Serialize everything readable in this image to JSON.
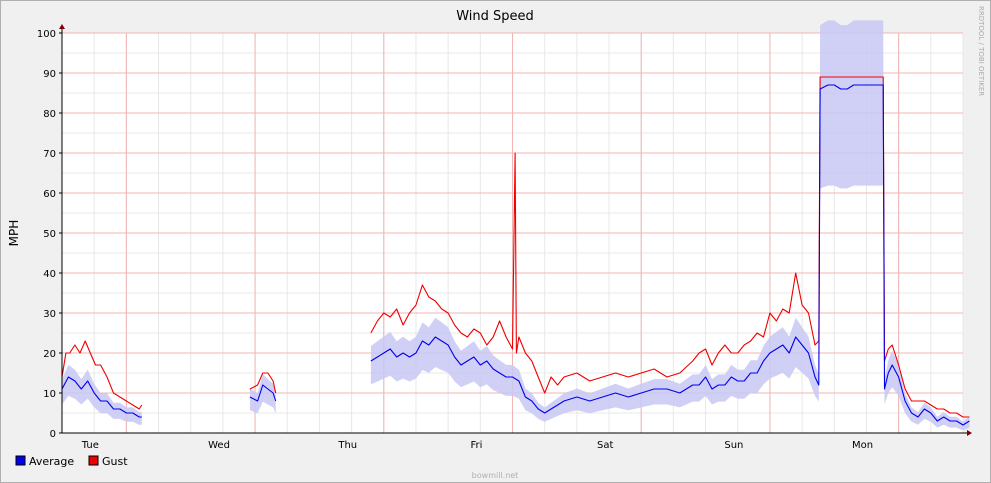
{
  "chart_data": {
    "type": "line",
    "title": "Wind Speed",
    "ylabel": "MPH",
    "xlabel": "",
    "ylim": [
      0,
      100
    ],
    "y_ticks": [
      0,
      10,
      20,
      30,
      40,
      50,
      60,
      70,
      80,
      90,
      100
    ],
    "x_range_days": [
      0,
      7
    ],
    "day_labels": [
      {
        "label": "Tue",
        "day": 0.22
      },
      {
        "label": "Wed",
        "day": 1.22
      },
      {
        "label": "Thu",
        "day": 2.22
      },
      {
        "label": "Fri",
        "day": 3.22
      },
      {
        "label": "Sat",
        "day": 4.22
      },
      {
        "label": "Sun",
        "day": 5.22
      },
      {
        "label": "Mon",
        "day": 6.22
      }
    ],
    "grid": true,
    "legend_position": "bottom-left",
    "watermark": "RRDTOOL / TOBI OETIKER",
    "footer": "bowmill.net",
    "series": [
      {
        "name": "Average",
        "color": "#0000ee",
        "band_color": "#c8c8f4",
        "points": [
          [
            0.0,
            11
          ],
          [
            0.05,
            14
          ],
          [
            0.1,
            13
          ],
          [
            0.15,
            11
          ],
          [
            0.2,
            13
          ],
          [
            0.25,
            10
          ],
          [
            0.3,
            8
          ],
          [
            0.35,
            8
          ],
          [
            0.4,
            6
          ],
          [
            0.45,
            6
          ],
          [
            0.5,
            5
          ],
          [
            0.55,
            5
          ],
          [
            0.6,
            4
          ],
          [
            0.62,
            4
          ],
          null,
          [
            1.46,
            9
          ],
          [
            1.52,
            8
          ],
          [
            1.56,
            12
          ],
          [
            1.6,
            11
          ],
          [
            1.64,
            10
          ],
          [
            1.66,
            8
          ],
          null,
          [
            2.4,
            18
          ],
          [
            2.45,
            19
          ],
          [
            2.5,
            20
          ],
          [
            2.55,
            21
          ],
          [
            2.6,
            19
          ],
          [
            2.65,
            20
          ],
          [
            2.7,
            19
          ],
          [
            2.75,
            20
          ],
          [
            2.8,
            23
          ],
          [
            2.85,
            22
          ],
          [
            2.9,
            24
          ],
          [
            2.95,
            23
          ],
          [
            3.0,
            22
          ],
          [
            3.05,
            19
          ],
          [
            3.1,
            17
          ],
          [
            3.15,
            18
          ],
          [
            3.2,
            19
          ],
          [
            3.25,
            17
          ],
          [
            3.3,
            18
          ],
          [
            3.35,
            16
          ],
          [
            3.4,
            15
          ],
          [
            3.45,
            14
          ],
          [
            3.5,
            14
          ],
          [
            3.55,
            13
          ],
          [
            3.6,
            9
          ],
          [
            3.65,
            8
          ],
          [
            3.7,
            6
          ],
          [
            3.75,
            5
          ],
          [
            3.8,
            6
          ],
          [
            3.85,
            7
          ],
          [
            3.9,
            8
          ],
          [
            4.0,
            9
          ],
          [
            4.1,
            8
          ],
          [
            4.2,
            9
          ],
          [
            4.3,
            10
          ],
          [
            4.4,
            9
          ],
          [
            4.5,
            10
          ],
          [
            4.6,
            11
          ],
          [
            4.7,
            11
          ],
          [
            4.8,
            10
          ],
          [
            4.9,
            12
          ],
          [
            4.95,
            12
          ],
          [
            5.0,
            14
          ],
          [
            5.05,
            11
          ],
          [
            5.1,
            12
          ],
          [
            5.15,
            12
          ],
          [
            5.2,
            14
          ],
          [
            5.25,
            13
          ],
          [
            5.3,
            13
          ],
          [
            5.35,
            15
          ],
          [
            5.4,
            15
          ],
          [
            5.45,
            18
          ],
          [
            5.5,
            20
          ],
          [
            5.55,
            21
          ],
          [
            5.6,
            22
          ],
          [
            5.65,
            20
          ],
          [
            5.7,
            24
          ],
          [
            5.75,
            22
          ],
          [
            5.8,
            20
          ],
          [
            5.85,
            14
          ],
          [
            5.88,
            12
          ],
          [
            5.89,
            86
          ],
          [
            5.95,
            87
          ],
          [
            6.0,
            87
          ],
          [
            6.05,
            86
          ],
          [
            6.1,
            86
          ],
          [
            6.15,
            87
          ],
          [
            6.2,
            87
          ],
          [
            6.25,
            87
          ],
          [
            6.3,
            87
          ],
          [
            6.35,
            87
          ],
          [
            6.38,
            87
          ],
          [
            6.39,
            11
          ],
          [
            6.42,
            15
          ],
          [
            6.45,
            17
          ],
          [
            6.5,
            14
          ],
          [
            6.55,
            8
          ],
          [
            6.6,
            5
          ],
          [
            6.65,
            4
          ],
          [
            6.7,
            6
          ],
          [
            6.75,
            5
          ],
          [
            6.8,
            3
          ],
          [
            6.85,
            4
          ],
          [
            6.9,
            3
          ],
          [
            6.95,
            3
          ],
          [
            7.0,
            2
          ],
          [
            7.05,
            3
          ]
        ]
      },
      {
        "name": "Gust",
        "color": "#ee0000",
        "points": [
          [
            0.0,
            14
          ],
          [
            0.03,
            20
          ],
          [
            0.06,
            20
          ],
          [
            0.1,
            22
          ],
          [
            0.14,
            20
          ],
          [
            0.18,
            23
          ],
          [
            0.22,
            20
          ],
          [
            0.26,
            17
          ],
          [
            0.3,
            17
          ],
          [
            0.35,
            14
          ],
          [
            0.4,
            10
          ],
          [
            0.45,
            9
          ],
          [
            0.5,
            8
          ],
          [
            0.55,
            7
          ],
          [
            0.6,
            6
          ],
          [
            0.62,
            7
          ],
          null,
          [
            1.46,
            11
          ],
          [
            1.52,
            12
          ],
          [
            1.56,
            15
          ],
          [
            1.6,
            15
          ],
          [
            1.64,
            13
          ],
          [
            1.66,
            10
          ],
          null,
          [
            2.4,
            25
          ],
          [
            2.45,
            28
          ],
          [
            2.5,
            30
          ],
          [
            2.55,
            29
          ],
          [
            2.6,
            31
          ],
          [
            2.65,
            27
          ],
          [
            2.7,
            30
          ],
          [
            2.75,
            32
          ],
          [
            2.8,
            37
          ],
          [
            2.85,
            34
          ],
          [
            2.9,
            33
          ],
          [
            2.95,
            31
          ],
          [
            3.0,
            30
          ],
          [
            3.05,
            27
          ],
          [
            3.1,
            25
          ],
          [
            3.15,
            24
          ],
          [
            3.2,
            26
          ],
          [
            3.25,
            25
          ],
          [
            3.3,
            22
          ],
          [
            3.35,
            24
          ],
          [
            3.4,
            28
          ],
          [
            3.45,
            24
          ],
          [
            3.5,
            21
          ],
          [
            3.52,
            70
          ],
          [
            3.53,
            20
          ],
          [
            3.55,
            24
          ],
          [
            3.6,
            20
          ],
          [
            3.65,
            18
          ],
          [
            3.7,
            14
          ],
          [
            3.75,
            10
          ],
          [
            3.8,
            14
          ],
          [
            3.85,
            12
          ],
          [
            3.9,
            14
          ],
          [
            4.0,
            15
          ],
          [
            4.1,
            13
          ],
          [
            4.2,
            14
          ],
          [
            4.3,
            15
          ],
          [
            4.4,
            14
          ],
          [
            4.5,
            15
          ],
          [
            4.6,
            16
          ],
          [
            4.7,
            14
          ],
          [
            4.8,
            15
          ],
          [
            4.9,
            18
          ],
          [
            4.95,
            20
          ],
          [
            5.0,
            21
          ],
          [
            5.05,
            17
          ],
          [
            5.1,
            20
          ],
          [
            5.15,
            22
          ],
          [
            5.2,
            20
          ],
          [
            5.25,
            20
          ],
          [
            5.3,
            22
          ],
          [
            5.35,
            23
          ],
          [
            5.4,
            25
          ],
          [
            5.45,
            24
          ],
          [
            5.5,
            30
          ],
          [
            5.55,
            28
          ],
          [
            5.6,
            31
          ],
          [
            5.65,
            30
          ],
          [
            5.7,
            40
          ],
          [
            5.75,
            32
          ],
          [
            5.8,
            30
          ],
          [
            5.85,
            22
          ],
          [
            5.88,
            23
          ],
          [
            5.89,
            89
          ],
          [
            5.95,
            89
          ],
          [
            6.0,
            89
          ],
          [
            6.05,
            89
          ],
          [
            6.1,
            89
          ],
          [
            6.15,
            89
          ],
          [
            6.2,
            89
          ],
          [
            6.25,
            89
          ],
          [
            6.3,
            89
          ],
          [
            6.35,
            89
          ],
          [
            6.38,
            89
          ],
          [
            6.39,
            18
          ],
          [
            6.42,
            21
          ],
          [
            6.45,
            22
          ],
          [
            6.5,
            17
          ],
          [
            6.55,
            11
          ],
          [
            6.6,
            8
          ],
          [
            6.65,
            8
          ],
          [
            6.7,
            8
          ],
          [
            6.75,
            7
          ],
          [
            6.8,
            6
          ],
          [
            6.85,
            6
          ],
          [
            6.9,
            5
          ],
          [
            6.95,
            5
          ],
          [
            7.0,
            4
          ],
          [
            7.05,
            4
          ]
        ]
      }
    ]
  }
}
